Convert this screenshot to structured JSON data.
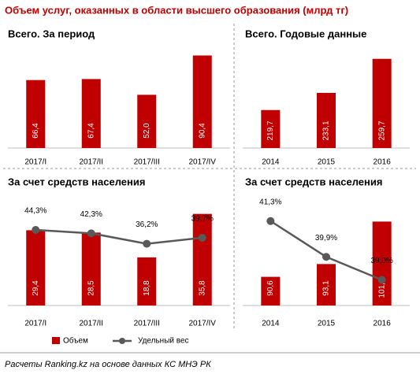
{
  "title": "Объем услуг, оказанных в области высшего образования (млрд тг)",
  "legend": [
    {
      "label": "Объем",
      "color": "#c00000"
    },
    {
      "label": "Удельный вес",
      "color": "#595959"
    }
  ],
  "source": "Расчеты Ranking.kz на основе данных КС МНЭ РК",
  "chart_data": [
    {
      "type": "bar",
      "title": "Всего. За период",
      "categories": [
        "2017/I",
        "2017/II",
        "2017/III",
        "2017/IV"
      ],
      "values": [
        66.4,
        67.4,
        52.0,
        90.4
      ],
      "value_labels": [
        "66,4",
        "67,4",
        "52,0",
        "90,4"
      ],
      "color": "#c00000",
      "ylim": [
        0,
        100
      ]
    },
    {
      "type": "bar",
      "title": "Всего. Годовые данные",
      "categories": [
        "2014",
        "2015",
        "2016"
      ],
      "values": [
        219.7,
        233.1,
        259.7
      ],
      "value_labels": [
        "219,7",
        "233,1",
        "259,7"
      ],
      "color": "#c00000",
      "ylim": [
        190,
        270
      ]
    },
    {
      "type": "combo",
      "title": "За счет средств населения",
      "categories": [
        "2017/I",
        "2017/II",
        "2017/III",
        "2017/IV"
      ],
      "series": [
        {
          "color": "#c00000",
          "values": [
            29.4,
            28.5,
            18.8,
            35.8
          ],
          "value_labels": [
            "29,4",
            "28,5",
            "18,8",
            "35,8"
          ]
        },
        {
          "color": "#595959",
          "values": [
            44.3,
            42.3,
            36.2,
            39.7
          ],
          "value_labels": [
            "44,3%",
            "42,3%",
            "36,2%",
            "39,7%"
          ],
          "axis": "y2"
        }
      ],
      "ylim": [
        0,
        40
      ],
      "y2lim": [
        0,
        60
      ]
    },
    {
      "type": "combo",
      "title": "За счет средств населения",
      "categories": [
        "2014",
        "2015",
        "2016"
      ],
      "series": [
        {
          "color": "#c00000",
          "values": [
            90.6,
            93.1,
            101.4
          ],
          "value_labels": [
            "90,6",
            "93,1",
            "101,4"
          ]
        },
        {
          "color": "#595959",
          "values": [
            41.3,
            39.9,
            39.0
          ],
          "value_labels": [
            "41,3%",
            "39,9%",
            "39,0%"
          ],
          "axis": "y2"
        }
      ],
      "ylim": [
        85,
        105
      ],
      "y2lim": [
        38,
        42
      ]
    }
  ]
}
